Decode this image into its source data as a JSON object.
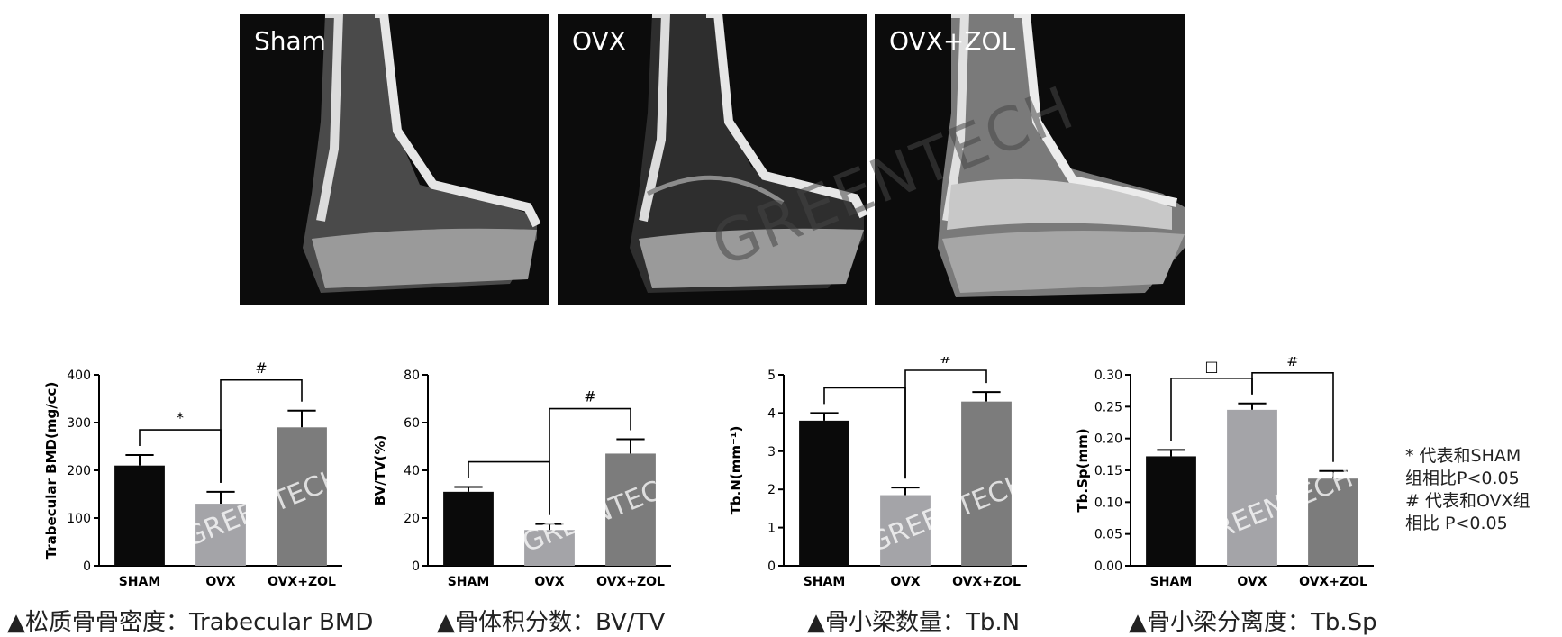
{
  "micro_panels": [
    {
      "label": "Sham"
    },
    {
      "label": "OVX"
    },
    {
      "label": "OVX+ZOL"
    }
  ],
  "watermark": "GREENTECH",
  "chart_data": [
    {
      "type": "bar",
      "categories": [
        "SHAM",
        "OVX",
        "OVX+ZOL"
      ],
      "values": [
        210,
        130,
        290
      ],
      "errors": [
        22,
        25,
        35
      ],
      "ylabel": "Trabecular BMD(mg/cc)",
      "ylim": [
        0,
        400
      ],
      "yticks": [
        0,
        100,
        200,
        300,
        400
      ],
      "colors": [
        "#0a0a0a",
        "#a4a4a8",
        "#7c7c7c"
      ],
      "annotations": [
        {
          "symbol": "*",
          "from": "SHAM",
          "to": "OVX"
        },
        {
          "symbol": "#",
          "from": "OVX",
          "to": "OVX+ZOL"
        }
      ],
      "caption": "▲松质骨骨密度：Trabecular BMD"
    },
    {
      "type": "bar",
      "categories": [
        "SHAM",
        "OVX",
        "OVX+ZOL"
      ],
      "values": [
        31,
        15,
        47
      ],
      "errors": [
        2,
        2.5,
        6
      ],
      "ylabel": "BV/TV(%)",
      "ylim": [
        0,
        80
      ],
      "yticks": [
        0,
        20,
        40,
        60,
        80
      ],
      "colors": [
        "#0a0a0a",
        "#a4a4a8",
        "#7c7c7c"
      ],
      "annotations": [
        {
          "symbol": "",
          "from": "SHAM",
          "to": "OVX"
        },
        {
          "symbol": "#",
          "from": "OVX",
          "to": "OVX+ZOL"
        }
      ],
      "caption": "▲骨体积分数：BV/TV"
    },
    {
      "type": "bar",
      "categories": [
        "SHAM",
        "OVX",
        "OVX+ZOL"
      ],
      "values": [
        3.8,
        1.85,
        4.3
      ],
      "errors": [
        0.2,
        0.2,
        0.25
      ],
      "ylabel": "Tb.N(mm⁻¹)",
      "ylim": [
        0,
        5
      ],
      "yticks": [
        0,
        1,
        2,
        3,
        4,
        5
      ],
      "colors": [
        "#0a0a0a",
        "#a4a4a8",
        "#7c7c7c"
      ],
      "annotations": [
        {
          "symbol": "",
          "from": "SHAM",
          "to": "OVX"
        },
        {
          "symbol": "#",
          "from": "OVX",
          "to": "OVX+ZOL"
        }
      ],
      "caption": "▲骨小梁数量：Tb.N"
    },
    {
      "type": "bar",
      "categories": [
        "SHAM",
        "OVX",
        "OVX+ZOL"
      ],
      "values": [
        0.172,
        0.245,
        0.137
      ],
      "errors": [
        0.01,
        0.01,
        0.012
      ],
      "ylabel": "Tb.Sp(mm)",
      "ylim": [
        0,
        0.3
      ],
      "yticks": [
        "0.00",
        "0.05",
        "0.10",
        "0.15",
        "0.20",
        "0.25",
        "0.30"
      ],
      "colors": [
        "#0a0a0a",
        "#a4a4a8",
        "#7c7c7c"
      ],
      "annotations": [
        {
          "symbol": "□",
          "from": "SHAM",
          "to": "OVX"
        },
        {
          "symbol": "#",
          "from": "OVX",
          "to": "OVX+ZOL"
        }
      ],
      "caption": "▲骨小梁分离度：Tb.Sp"
    }
  ],
  "legend_note": {
    "line1": "* 代表和SHAM",
    "line2": "组相比P<0.05",
    "line3": "# 代表和OVX组",
    "line4": "相比  P<0.05"
  }
}
